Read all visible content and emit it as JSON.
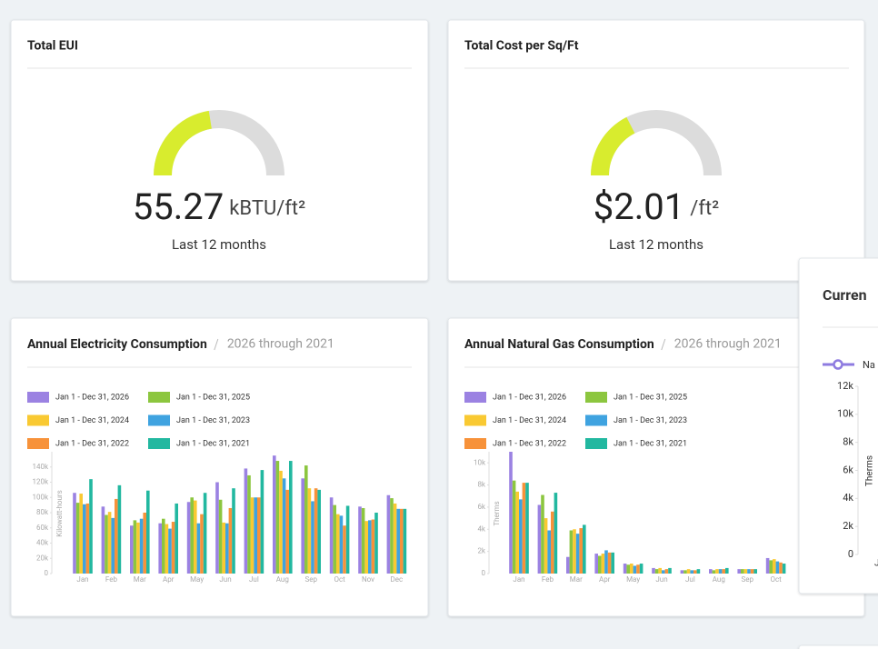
{
  "cards": [
    {
      "title": "Total EUI",
      "value": "55.27",
      "unit": "kBTU/ft²",
      "caption": "Last 12 months",
      "gauge_percent": 45
    },
    {
      "title": "Total Cost per Sq/Ft",
      "value": "$2.01",
      "unit": "/ft²",
      "caption": "Last 12 months",
      "gauge_percent": 35
    }
  ],
  "chart_data": [
    {
      "type": "bar",
      "title": "Annual Electricity Consumption",
      "subtitle": "2026 through 2021",
      "ylabel": "Kilowatt-hours",
      "categories": [
        "Jan",
        "Feb",
        "Mar",
        "Apr",
        "May",
        "Jun",
        "Jul",
        "Aug",
        "Sep",
        "Oct",
        "Nov",
        "Dec"
      ],
      "ylim": [
        0,
        160000
      ],
      "yticks": [
        0,
        {
          "value": 20000,
          "label": "20k"
        },
        {
          "value": 40000,
          "label": "40k"
        },
        {
          "value": 60000,
          "label": "60k"
        },
        {
          "value": 80000,
          "label": "80k"
        },
        {
          "value": 100000,
          "label": "100k"
        },
        {
          "value": 120000,
          "label": "120k"
        },
        {
          "value": 140000,
          "label": "140k"
        }
      ],
      "series": [
        {
          "name": "Jan 1 - Dec 31, 2026",
          "color": "#9b82e2",
          "values": [
            106000,
            88000,
            63000,
            66000,
            94000,
            120000,
            138000,
            155000,
            125000,
            100000,
            88000,
            103000
          ]
        },
        {
          "name": "Jan 1 - Dec 31, 2025",
          "color": "#8cc63f",
          "values": [
            93000,
            77000,
            70000,
            72000,
            100000,
            97000,
            129000,
            148000,
            142000,
            90000,
            86000,
            99000
          ]
        },
        {
          "name": "Jan 1 - Dec 31, 2024",
          "color": "#f9c932",
          "values": [
            105000,
            81000,
            67000,
            65000,
            96000,
            67000,
            100000,
            135000,
            112000,
            78000,
            69000,
            92000
          ]
        },
        {
          "name": "Jan 1 - Dec 31, 2023",
          "color": "#3fa3e0",
          "values": [
            91000,
            73000,
            72000,
            59000,
            66000,
            66000,
            100000,
            125000,
            95000,
            76000,
            70000,
            85000
          ]
        },
        {
          "name": "Jan 1 - Dec 31, 2022",
          "color": "#f7923a",
          "values": [
            92000,
            98000,
            80000,
            68000,
            78000,
            86000,
            100000,
            110000,
            112000,
            63000,
            71000,
            85000
          ]
        },
        {
          "name": "Jan 1 - Dec 31, 2021",
          "color": "#22b8a0",
          "values": [
            124000,
            116000,
            109000,
            92000,
            106000,
            112000,
            136000,
            148000,
            110000,
            89000,
            80000,
            85000
          ]
        }
      ]
    },
    {
      "type": "bar",
      "title": "Annual Natural Gas Consumption",
      "subtitle": "2026 through 2021",
      "ylabel": "Therms",
      "categories": [
        "Jan",
        "Feb",
        "Mar",
        "Apr",
        "May",
        "Jun",
        "Jul",
        "Aug",
        "Sep",
        "Oct"
      ],
      "ylim": [
        0,
        11000
      ],
      "yticks": [
        0,
        {
          "value": 2000,
          "label": "2k"
        },
        {
          "value": 4000,
          "label": "4k"
        },
        {
          "value": 6000,
          "label": "6k"
        },
        {
          "value": 8000,
          "label": "8k"
        },
        {
          "value": 10000,
          "label": "10k"
        }
      ],
      "series": [
        {
          "name": "Jan 1 - Dec 31, 2026",
          "color": "#9b82e2",
          "values": [
            11000,
            6200,
            1500,
            1800,
            900,
            500,
            300,
            400,
            400,
            1400
          ]
        },
        {
          "name": "Jan 1 - Dec 31, 2025",
          "color": "#8cc63f",
          "values": [
            8400,
            7100,
            3900,
            1600,
            800,
            400,
            300,
            300,
            400,
            1200
          ]
        },
        {
          "name": "Jan 1 - Dec 31, 2024",
          "color": "#f9c932",
          "values": [
            7400,
            5000,
            4000,
            1800,
            900,
            500,
            400,
            400,
            400,
            1300
          ]
        },
        {
          "name": "Jan 1 - Dec 31, 2023",
          "color": "#3fa3e0",
          "values": [
            6700,
            3900,
            3600,
            2100,
            700,
            300,
            300,
            400,
            400,
            1100
          ]
        },
        {
          "name": "Jan 1 - Dec 31, 2022",
          "color": "#f7923a",
          "values": [
            8200,
            5600,
            4100,
            1900,
            800,
            400,
            300,
            400,
            400,
            1000
          ]
        },
        {
          "name": "Jan 1 - Dec 31, 2021",
          "color": "#22b8a0",
          "values": [
            8200,
            7300,
            4400,
            1900,
            900,
            500,
            400,
            500,
            400,
            900
          ]
        }
      ]
    },
    {
      "type": "line",
      "title": "Curren",
      "ylabel": "Therms",
      "categories": [
        "J"
      ],
      "ylim": [
        0,
        12000
      ],
      "yticks": [
        0,
        {
          "value": 2000,
          "label": "2k"
        },
        {
          "value": 4000,
          "label": "4k"
        },
        {
          "value": 6000,
          "label": "6k"
        },
        {
          "value": 8000,
          "label": "8k"
        },
        {
          "value": 10000,
          "label": "10k"
        },
        {
          "value": 12000,
          "label": "12k"
        }
      ],
      "series": [
        {
          "name": "Na",
          "color": "#8e7be0"
        }
      ]
    }
  ]
}
